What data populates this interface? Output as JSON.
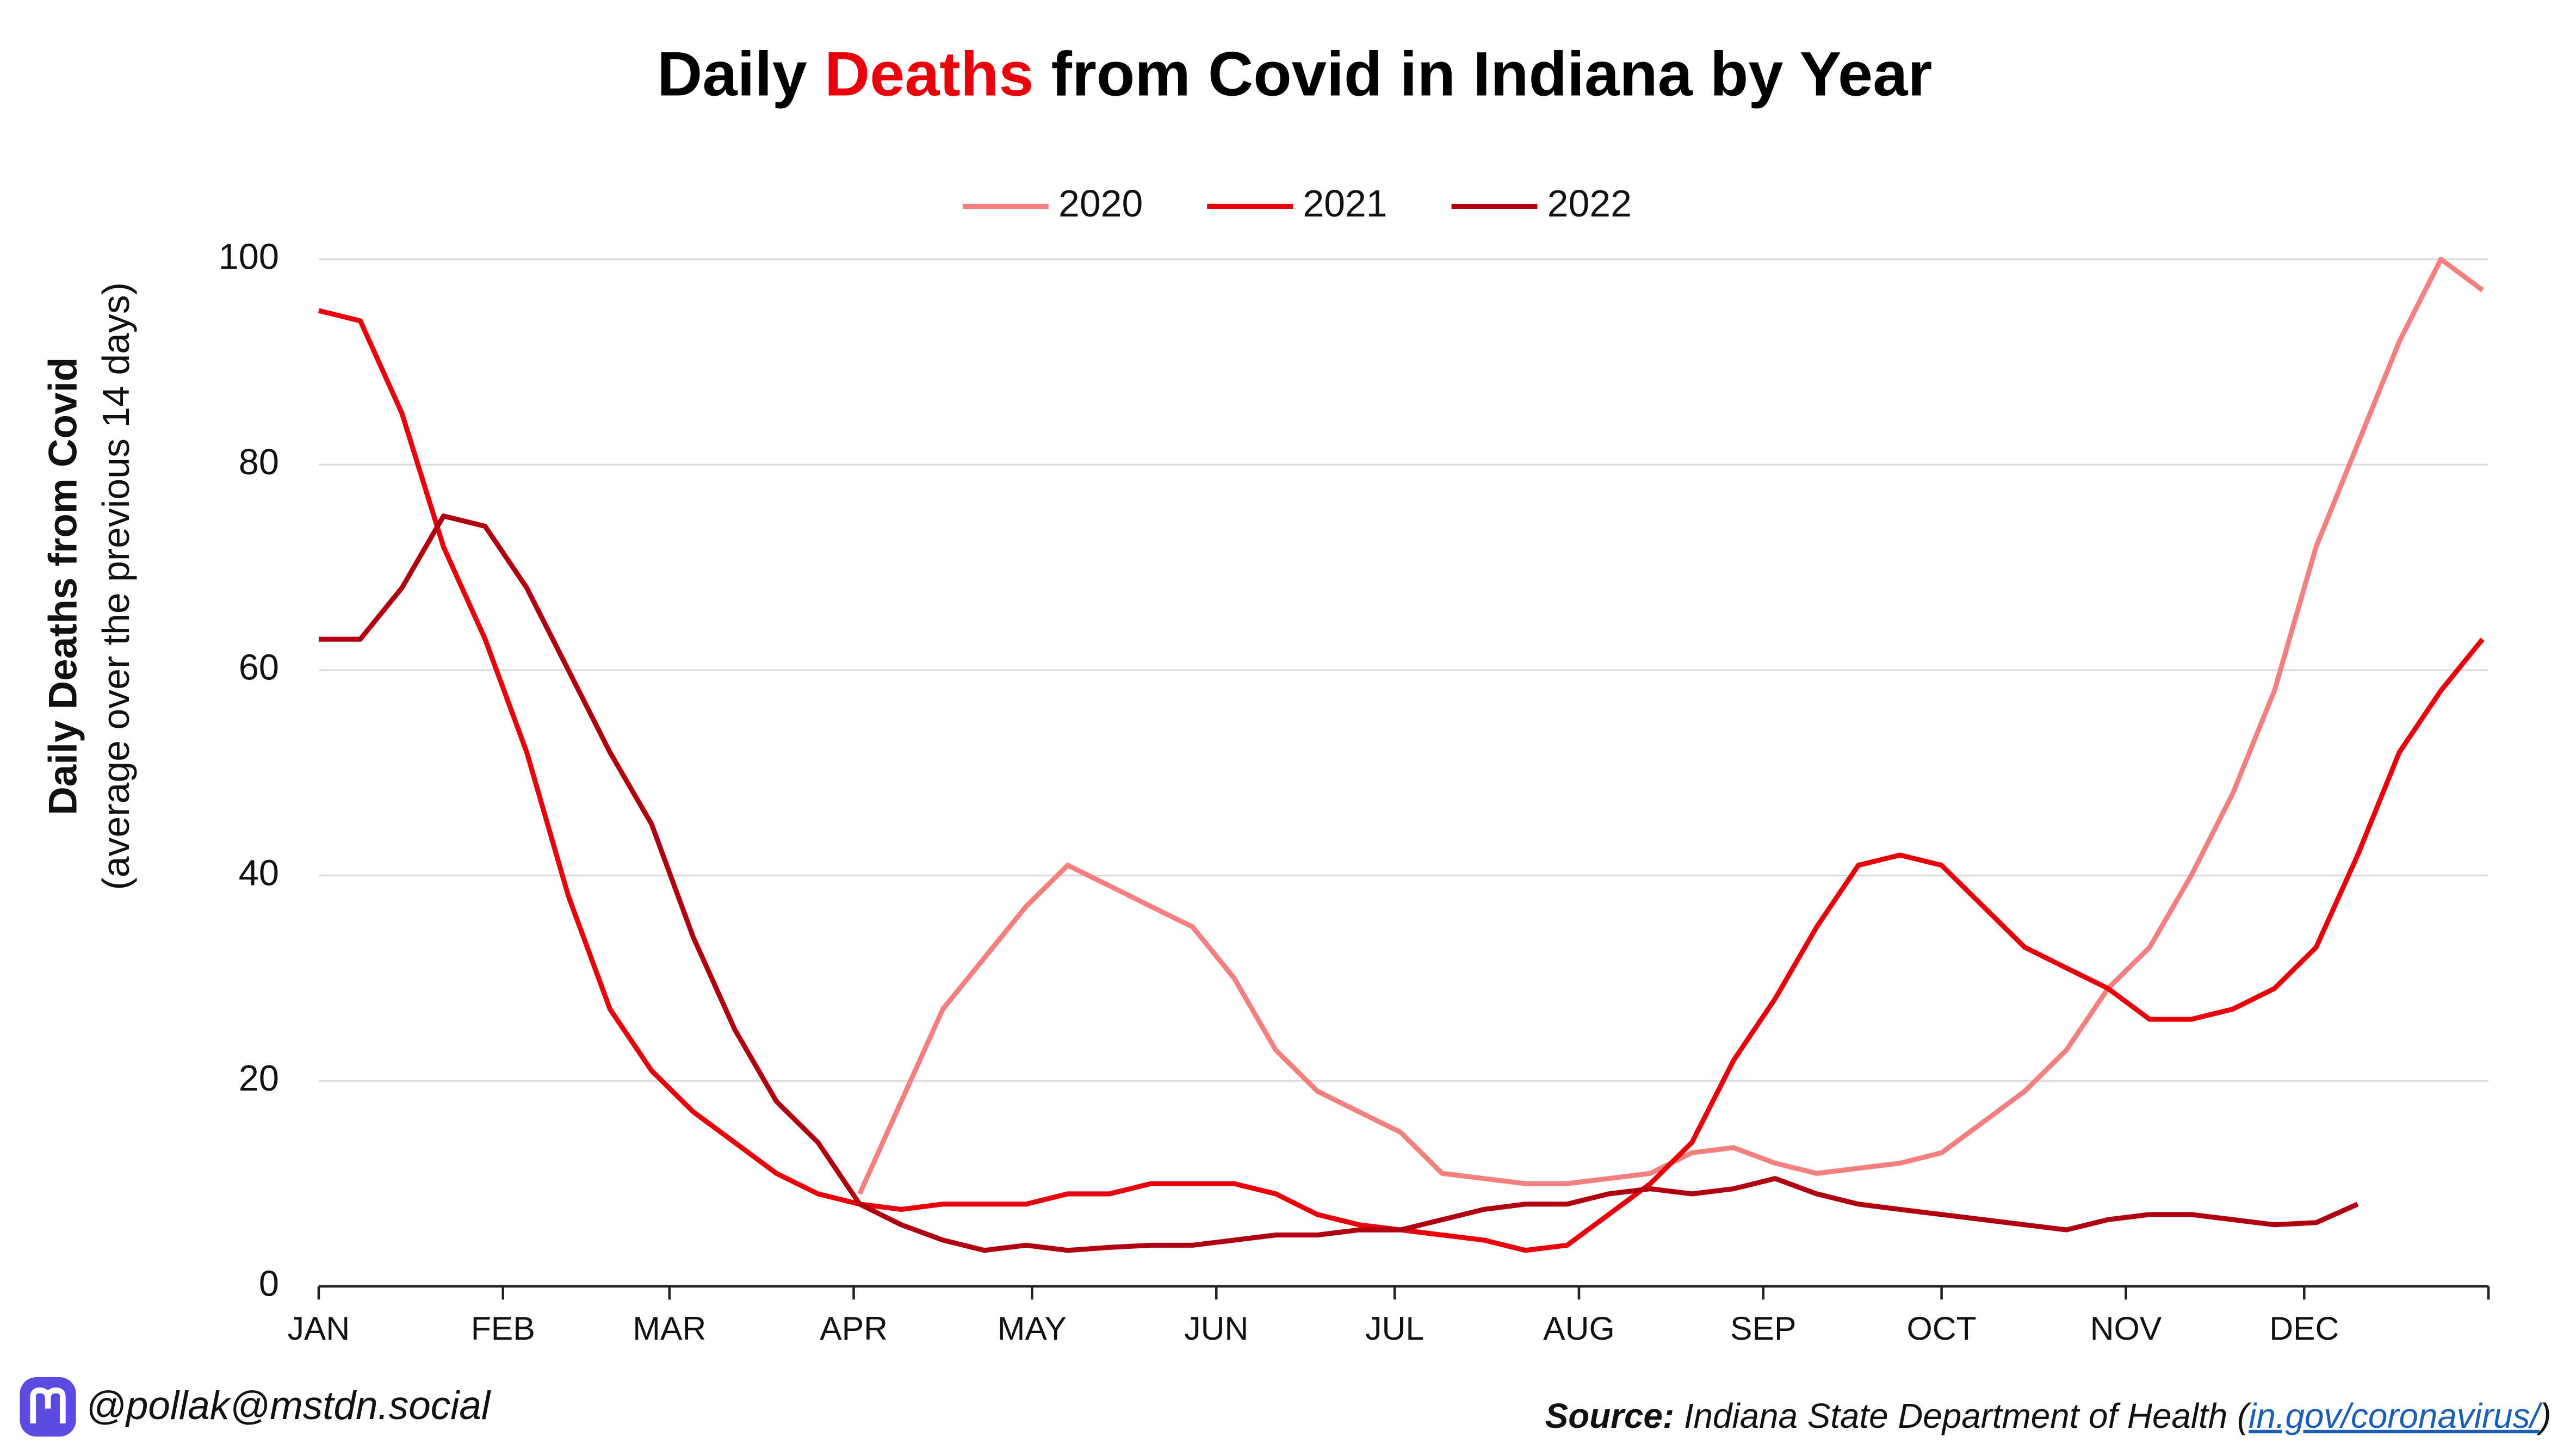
{
  "chart_data": {
    "type": "line",
    "title": "Daily Deaths from Covid in Indiana by Year",
    "title_highlight": "Deaths",
    "ylabel": "Daily Deaths from Covid",
    "ylabel_sub": "(average over the previous 14 days)",
    "handle": "@pollak@mstdn.social",
    "source_label": "Source:",
    "source_parts": [
      "Indiana State Department of Health (",
      "in.gov/coronavirus/",
      ")"
    ],
    "legend": "top",
    "grid": true,
    "xlim": [
      0,
      365
    ],
    "xticks": [
      {
        "value": 0,
        "label": "JAN"
      },
      {
        "value": 31,
        "label": "FEB"
      },
      {
        "value": 59,
        "label": "MAR"
      },
      {
        "value": 90,
        "label": "APR"
      },
      {
        "value": 120,
        "label": "MAY"
      },
      {
        "value": 151,
        "label": "JUN"
      },
      {
        "value": 181,
        "label": "JUL"
      },
      {
        "value": 212,
        "label": "AUG"
      },
      {
        "value": 243,
        "label": "SEP"
      },
      {
        "value": 273,
        "label": "OCT"
      },
      {
        "value": 304,
        "label": "NOV"
      },
      {
        "value": 334,
        "label": "DEC"
      }
    ],
    "ylim": [
      0,
      100
    ],
    "yticks": [
      0,
      20,
      40,
      60,
      80,
      100
    ],
    "x": [
      0,
      7,
      14,
      21,
      28,
      35,
      42,
      49,
      56,
      63,
      70,
      77,
      84,
      91,
      98,
      105,
      112,
      119,
      126,
      133,
      140,
      147,
      154,
      161,
      168,
      175,
      182,
      189,
      196,
      203,
      210,
      217,
      224,
      231,
      238,
      245,
      252,
      259,
      266,
      273,
      280,
      287,
      294,
      301,
      308,
      315,
      322,
      329,
      336,
      343,
      350,
      357,
      364
    ],
    "series": [
      {
        "name": "2020",
        "color": "#f47f7f",
        "values": [
          null,
          null,
          null,
          null,
          null,
          null,
          null,
          null,
          null,
          null,
          null,
          null,
          null,
          9,
          18,
          27,
          32,
          37,
          41,
          39,
          37,
          35,
          30,
          23,
          19,
          17,
          15,
          11,
          10.5,
          10,
          10,
          10.5,
          11,
          13,
          13.5,
          12,
          11,
          11.5,
          12,
          13,
          16,
          19,
          23,
          29,
          33,
          40,
          48,
          58,
          72,
          82,
          92,
          100,
          97
        ]
      },
      {
        "name": "2021",
        "color": "#e8000b",
        "values": [
          95,
          94,
          85,
          72,
          63,
          52,
          38,
          27,
          21,
          17,
          14,
          11,
          9,
          8,
          7.5,
          8,
          8,
          8,
          9,
          9,
          10,
          10,
          10,
          9,
          7,
          6,
          5.5,
          5,
          4.5,
          3.5,
          4,
          7,
          10,
          14,
          22,
          28,
          35,
          41,
          42,
          41,
          37,
          33,
          31,
          29,
          26,
          26,
          27,
          29,
          33,
          42,
          52,
          58,
          63
        ]
      },
      {
        "name": "2022",
        "color": "#b00010",
        "values": [
          63,
          63,
          68,
          75,
          74,
          68,
          60,
          52,
          45,
          34,
          25,
          18,
          14,
          8,
          6,
          4.5,
          3.5,
          4,
          3.5,
          3.8,
          4,
          4,
          4.5,
          5,
          5,
          5.5,
          5.5,
          6.5,
          7.5,
          8,
          8,
          9,
          9.5,
          9,
          9.5,
          10.5,
          9,
          8,
          7.5,
          7,
          6.5,
          6,
          5.5,
          6.5,
          7,
          7,
          6.5,
          6,
          6.2,
          8,
          null,
          null,
          null
        ]
      }
    ]
  }
}
